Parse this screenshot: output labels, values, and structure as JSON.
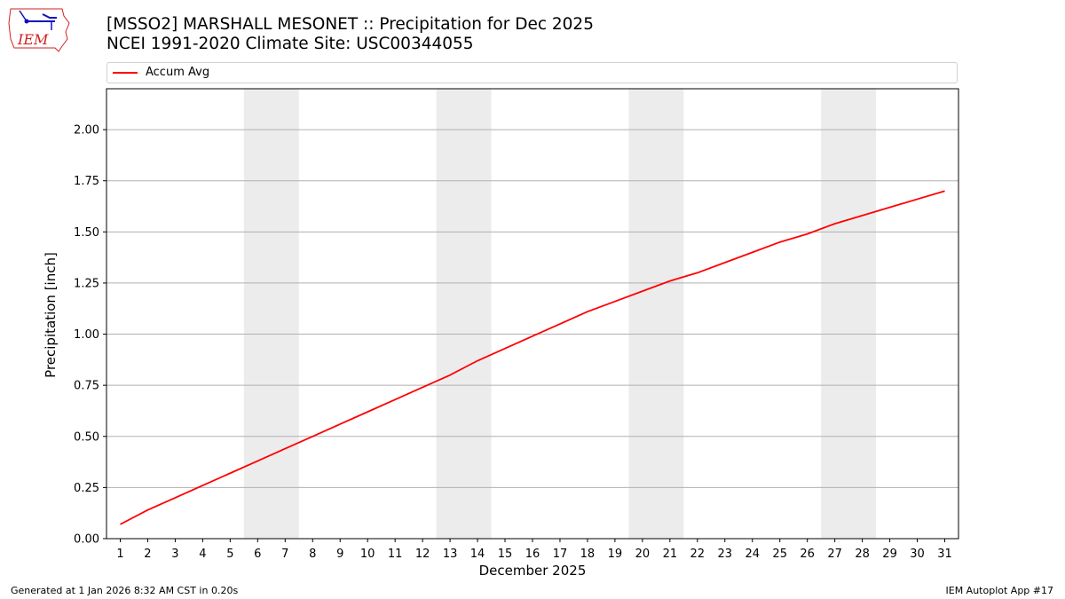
{
  "header": {
    "logo_text": "IEM",
    "title_line1": "[MSSO2] MARSHALL MESONET :: Precipitation for Dec 2025",
    "title_line2": "NCEI 1991-2020 Climate Site: USC00344055"
  },
  "legend": {
    "entries": [
      {
        "label": "Accum Avg",
        "color": "#ff0000"
      }
    ]
  },
  "footer": {
    "left": "Generated at 1 Jan 2026 8:32 AM CST in 0.20s",
    "right": "IEM Autoplot App #17"
  },
  "colors": {
    "line": "#ff0000",
    "weekend_band": "#ececec",
    "grid": "#b0b0b0",
    "logo_red": "#d02020",
    "logo_blue": "#1010c0"
  },
  "chart_data": {
    "type": "line",
    "title": "[MSSO2] MARSHALL MESONET :: Precipitation for Dec 2025",
    "subtitle": "NCEI 1991-2020 Climate Site: USC00344055",
    "xlabel": "December 2025",
    "ylabel": "Precipitation [inch]",
    "x": [
      1,
      2,
      3,
      4,
      5,
      6,
      7,
      8,
      9,
      10,
      11,
      12,
      13,
      14,
      15,
      16,
      17,
      18,
      19,
      20,
      21,
      22,
      23,
      24,
      25,
      26,
      27,
      28,
      29,
      30,
      31
    ],
    "x_tick_labels": [
      "1",
      "2",
      "3",
      "4",
      "5",
      "6",
      "7",
      "8",
      "9",
      "10",
      "11",
      "12",
      "13",
      "14",
      "15",
      "16",
      "17",
      "18",
      "19",
      "20",
      "21",
      "22",
      "23",
      "24",
      "25",
      "26",
      "27",
      "28",
      "29",
      "30",
      "31"
    ],
    "series": [
      {
        "name": "Accum Avg",
        "color": "#ff0000",
        "values": [
          0.07,
          0.14,
          0.2,
          0.26,
          0.32,
          0.38,
          0.44,
          0.5,
          0.56,
          0.62,
          0.68,
          0.74,
          0.8,
          0.87,
          0.93,
          0.99,
          1.05,
          1.11,
          1.16,
          1.21,
          1.26,
          1.3,
          1.35,
          1.4,
          1.45,
          1.49,
          1.54,
          1.58,
          1.62,
          1.66,
          1.7
        ]
      }
    ],
    "y_ticks": [
      "0.00",
      "0.25",
      "0.50",
      "0.75",
      "1.00",
      "1.25",
      "1.50",
      "1.75",
      "2.00"
    ],
    "ylim": [
      0,
      2.2
    ],
    "xlim": [
      0.5,
      31.5
    ],
    "weekend_bands": [
      [
        5.5,
        7.5
      ],
      [
        12.5,
        14.5
      ],
      [
        19.5,
        21.5
      ],
      [
        26.5,
        28.5
      ]
    ],
    "grid": "y-major",
    "legend_position": "top"
  }
}
